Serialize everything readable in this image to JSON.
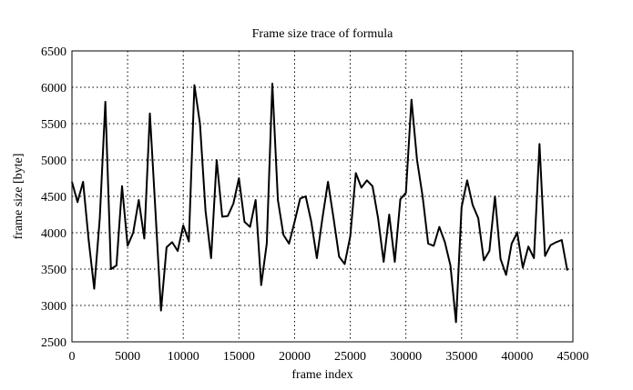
{
  "chart_data": {
    "type": "line",
    "title": "Frame size trace of formula",
    "xlabel": "frame index",
    "ylabel": "frame size [byte]",
    "xlim": [
      0,
      45000
    ],
    "xticks": [
      0,
      5000,
      10000,
      15000,
      20000,
      25000,
      30000,
      35000,
      40000,
      45000
    ],
    "ylim": [
      2500,
      6500
    ],
    "yticks": [
      2500,
      3000,
      3500,
      4000,
      4500,
      5000,
      5500,
      6000,
      6500
    ],
    "grid": true,
    "x": [
      0,
      500,
      1000,
      1500,
      2000,
      2500,
      3000,
      3500,
      4000,
      4500,
      5000,
      5500,
      6000,
      6500,
      7000,
      7500,
      8000,
      8500,
      9000,
      9500,
      10000,
      10500,
      11000,
      11500,
      12000,
      12500,
      13000,
      13500,
      14000,
      14500,
      15000,
      15500,
      16000,
      16500,
      17000,
      17500,
      18000,
      18500,
      19000,
      19500,
      20000,
      20500,
      21000,
      21500,
      22000,
      22500,
      23000,
      23500,
      24000,
      24500,
      25000,
      25500,
      26000,
      26500,
      27000,
      27500,
      28000,
      28500,
      29000,
      29500,
      30000,
      30500,
      31000,
      31500,
      32000,
      32500,
      33000,
      33500,
      34000,
      34500,
      35000,
      35500,
      36000,
      36500,
      37000,
      37500,
      38000,
      38500,
      39000,
      39500,
      40000,
      40500,
      41000,
      41500,
      42000,
      42500,
      43000,
      43500,
      44000,
      44500
    ],
    "series": [
      {
        "color": "#000000",
        "values": [
          4700,
          4420,
          4700,
          3900,
          3230,
          4200,
          5800,
          3500,
          3550,
          4640,
          3820,
          4000,
          4450,
          3920,
          5640,
          4300,
          2930,
          3800,
          3870,
          3750,
          4100,
          3880,
          6030,
          5500,
          4300,
          3650,
          5000,
          4220,
          4230,
          4400,
          4750,
          4150,
          4080,
          4450,
          3280,
          3850,
          6050,
          4450,
          3970,
          3850,
          4150,
          4470,
          4500,
          4150,
          3650,
          4200,
          4700,
          4200,
          3670,
          3570,
          3950,
          4820,
          4620,
          4720,
          4640,
          4200,
          3600,
          4250,
          3600,
          4460,
          4550,
          5830,
          5000,
          4500,
          3850,
          3820,
          4080,
          3870,
          3550,
          2770,
          4350,
          4720,
          4380,
          4200,
          3620,
          3750,
          4500,
          3640,
          3420,
          3850,
          4000,
          3520,
          3810,
          3650,
          5220,
          3680,
          3830,
          3870,
          3900,
          3480
        ]
      }
    ]
  }
}
